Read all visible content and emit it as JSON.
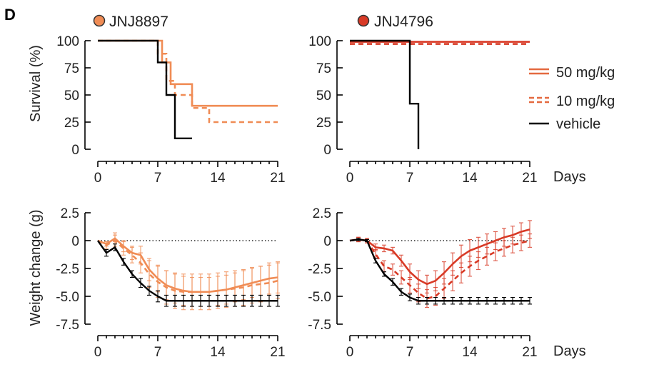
{
  "figure": {
    "panel_letter": "D",
    "compounds": [
      {
        "name": "JNJ8897",
        "marker_color": "#f08c55"
      },
      {
        "name": "JNJ4796",
        "marker_color": "#d83a26"
      }
    ],
    "x_unit_label": "Days",
    "legend": [
      {
        "label": "50 mg/kg",
        "style": "solid"
      },
      {
        "label": "10 mg/kg",
        "style": "dashed"
      },
      {
        "label": "vehicle",
        "style": "solid-black"
      }
    ]
  },
  "colors": {
    "jnj8897_line": "#f08c55",
    "jnj4796_line": "#d83a26",
    "vehicle_line": "#000000",
    "legend_line": "#e46a40"
  },
  "chart_data": [
    {
      "type": "line",
      "subtype": "survival-step",
      "compound": "JNJ8897",
      "ylabel": "Survival (%)",
      "xlabel": "Days",
      "xlim": [
        0,
        21
      ],
      "ylim": [
        0,
        100
      ],
      "xticks": [
        0,
        7,
        14,
        21
      ],
      "yticks": [
        0,
        25,
        50,
        75,
        100
      ],
      "series": [
        {
          "name": "50 mg/kg",
          "style": "solid",
          "x": [
            0,
            7.5,
            8.5,
            11,
            21
          ],
          "y": [
            100,
            80,
            60,
            40,
            40
          ]
        },
        {
          "name": "10 mg/kg",
          "style": "dashed",
          "x": [
            0,
            7,
            8,
            9,
            11,
            13,
            21
          ],
          "y": [
            100,
            88,
            63,
            50,
            38,
            25,
            25
          ]
        },
        {
          "name": "vehicle",
          "style": "solid",
          "x": [
            0,
            7,
            8,
            9,
            11
          ],
          "y": [
            100,
            80,
            50,
            10,
            10
          ]
        }
      ]
    },
    {
      "type": "line",
      "subtype": "survival-step",
      "compound": "JNJ4796",
      "ylabel": "",
      "xlabel": "Days",
      "xlim": [
        0,
        21
      ],
      "ylim": [
        0,
        100
      ],
      "xticks": [
        0,
        7,
        14,
        21
      ],
      "yticks": [
        0,
        25,
        50,
        75,
        100
      ],
      "series": [
        {
          "name": "50 mg/kg",
          "style": "solid",
          "x": [
            0,
            21
          ],
          "y": [
            99,
            99
          ]
        },
        {
          "name": "10 mg/kg",
          "style": "dashed",
          "x": [
            0,
            21
          ],
          "y": [
            97,
            97
          ]
        },
        {
          "name": "vehicle",
          "style": "solid",
          "x": [
            0,
            7,
            8
          ],
          "y": [
            100,
            42,
            0
          ]
        }
      ]
    },
    {
      "type": "line",
      "subtype": "errorbar",
      "compound": "JNJ8897",
      "ylabel": "Weight change (g)",
      "xlabel": "Days",
      "xlim": [
        0,
        21
      ],
      "ylim": [
        -7.5,
        2.5
      ],
      "xticks": [
        0,
        7,
        14,
        21
      ],
      "yticks": [
        2.5,
        0,
        -2.5,
        -5.0,
        -7.5
      ],
      "ytick_labels": [
        "2.5",
        "0",
        "-2.5",
        "-5.0",
        "-7.5"
      ],
      "reference_line": 0,
      "series": [
        {
          "name": "50 mg/kg",
          "style": "solid",
          "x": [
            0,
            1,
            2,
            3,
            4,
            5,
            6,
            7,
            8,
            9,
            10,
            11,
            12,
            13,
            14,
            15,
            16,
            17,
            18,
            19,
            20,
            21
          ],
          "y": [
            0,
            -0.3,
            0.2,
            -0.5,
            -1.1,
            -1.3,
            -2.6,
            -3.4,
            -4.0,
            -4.3,
            -4.5,
            -4.6,
            -4.6,
            -4.6,
            -4.5,
            -4.4,
            -4.2,
            -4.0,
            -3.8,
            -3.6,
            -3.4,
            -3.3
          ],
          "err": [
            0,
            0.2,
            0.5,
            0.5,
            0.6,
            0.8,
            1.0,
            1.2,
            1.3,
            1.3,
            1.3,
            1.3,
            1.3,
            1.3,
            1.3,
            1.3,
            1.3,
            1.3,
            1.3,
            1.3,
            1.4,
            1.4
          ]
        },
        {
          "name": "10 mg/kg",
          "style": "dashed",
          "x": [
            0,
            1,
            2,
            3,
            4,
            5,
            6,
            7,
            8,
            9,
            10,
            11,
            12,
            13,
            14,
            15,
            16,
            17,
            18,
            19,
            20,
            21
          ],
          "y": [
            0,
            -0.4,
            0,
            -0.7,
            -1.3,
            -2.0,
            -3.0,
            -3.7,
            -4.2,
            -4.5,
            -4.6,
            -4.6,
            -4.6,
            -4.6,
            -4.5,
            -4.4,
            -4.3,
            -4.2,
            -4.0,
            -3.9,
            -3.8,
            -3.6
          ],
          "err": [
            0,
            0.3,
            0.5,
            0.6,
            0.7,
            0.9,
            1.2,
            1.4,
            1.5,
            1.6,
            1.6,
            1.6,
            1.6,
            1.6,
            1.6,
            1.6,
            1.6,
            1.6,
            1.6,
            1.6,
            1.6,
            1.6
          ]
        },
        {
          "name": "vehicle",
          "style": "solid",
          "x": [
            0,
            1,
            2,
            3,
            4,
            5,
            6,
            7,
            8,
            9,
            10,
            11,
            12,
            13,
            14,
            15,
            16,
            17,
            18,
            19,
            20,
            21
          ],
          "y": [
            0,
            -1.1,
            -0.6,
            -1.9,
            -3.0,
            -3.8,
            -4.5,
            -5.0,
            -5.4,
            -5.4,
            -5.4,
            -5.4,
            -5.4,
            -5.4,
            -5.4,
            -5.4,
            -5.4,
            -5.4,
            -5.4,
            -5.4,
            -5.4,
            -5.4
          ],
          "err": [
            0,
            0.3,
            0.3,
            0.3,
            0.3,
            0.4,
            0.4,
            0.5,
            0.5,
            0.5,
            0.5,
            0.5,
            0.5,
            0.5,
            0.5,
            0.5,
            0.5,
            0.5,
            0.5,
            0.5,
            0.5,
            0.5
          ]
        }
      ]
    },
    {
      "type": "line",
      "subtype": "errorbar",
      "compound": "JNJ4796",
      "ylabel": "",
      "xlabel": "Days",
      "xlim": [
        0,
        21
      ],
      "ylim": [
        -7.5,
        2.5
      ],
      "xticks": [
        0,
        7,
        14,
        21
      ],
      "yticks": [
        2.5,
        0,
        -2.5,
        -5.0,
        -7.5
      ],
      "ytick_labels": [
        "2.5",
        "0",
        "-2.5",
        "-5.0",
        "-7.5"
      ],
      "reference_line": 0,
      "series": [
        {
          "name": "50 mg/kg",
          "style": "solid",
          "x": [
            0,
            1,
            2,
            3,
            4,
            5,
            6,
            7,
            8,
            9,
            10,
            11,
            12,
            13,
            14,
            15,
            16,
            17,
            18,
            19,
            20,
            21
          ],
          "y": [
            0,
            0.1,
            0,
            -0.6,
            -0.7,
            -0.9,
            -1.8,
            -2.8,
            -3.5,
            -3.9,
            -3.6,
            -2.9,
            -2.1,
            -1.4,
            -0.9,
            -0.6,
            -0.3,
            0,
            0.3,
            0.5,
            0.8,
            1.0
          ],
          "err": [
            0,
            0.2,
            0.2,
            0.3,
            0.3,
            0.3,
            0.5,
            0.7,
            0.8,
            0.8,
            0.9,
            1.0,
            1.0,
            1.0,
            1.0,
            0.9,
            0.9,
            0.8,
            0.8,
            0.8,
            0.8,
            0.8
          ]
        },
        {
          "name": "10 mg/kg",
          "style": "dashed",
          "x": [
            0,
            1,
            2,
            3,
            4,
            5,
            6,
            7,
            8,
            9,
            10,
            11,
            12,
            13,
            14,
            15,
            16,
            17,
            18,
            19,
            20,
            21
          ],
          "y": [
            0,
            0.1,
            0,
            -1.2,
            -2.3,
            -2.6,
            -3.3,
            -4.0,
            -4.7,
            -5.2,
            -5.0,
            -4.3,
            -3.6,
            -2.9,
            -2.3,
            -1.8,
            -1.4,
            -1.0,
            -0.7,
            -0.4,
            -0.2,
            0
          ],
          "err": [
            0,
            0.2,
            0.2,
            0.4,
            0.5,
            0.5,
            0.6,
            0.7,
            0.8,
            0.8,
            0.8,
            0.9,
            0.9,
            0.9,
            0.9,
            0.8,
            0.8,
            0.8,
            0.7,
            0.7,
            0.7,
            0.6
          ]
        },
        {
          "name": "vehicle",
          "style": "solid",
          "x": [
            0,
            1,
            2,
            3,
            4,
            5,
            6,
            7,
            8,
            9,
            10,
            11,
            12,
            13,
            14,
            15,
            16,
            17,
            18,
            19,
            20,
            21
          ],
          "y": [
            0,
            0.1,
            0,
            -1.8,
            -3.0,
            -3.7,
            -4.6,
            -5.1,
            -5.4,
            -5.4,
            -5.4,
            -5.4,
            -5.4,
            -5.4,
            -5.4,
            -5.4,
            -5.4,
            -5.4,
            -5.4,
            -5.4,
            -5.4,
            -5.4
          ],
          "err": [
            0,
            0.1,
            0.1,
            0.2,
            0.2,
            0.3,
            0.3,
            0.3,
            0.3,
            0.3,
            0.3,
            0.3,
            0.3,
            0.3,
            0.3,
            0.3,
            0.3,
            0.3,
            0.3,
            0.3,
            0.3,
            0.3
          ]
        }
      ]
    }
  ]
}
